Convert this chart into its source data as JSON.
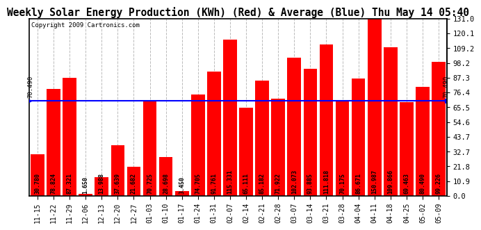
{
  "title": "Weekly Solar Energy Production (KWh) (Red) & Average (Blue) Thu May 14 05:40",
  "copyright": "Copyright 2009 Cartronics.com",
  "categories": [
    "11-15",
    "11-22",
    "11-29",
    "12-06",
    "12-13",
    "12-20",
    "12-27",
    "01-03",
    "01-10",
    "01-17",
    "01-24",
    "01-31",
    "02-07",
    "02-14",
    "02-21",
    "02-28",
    "03-07",
    "03-14",
    "03-21",
    "03-28",
    "04-04",
    "04-11",
    "04-18",
    "04-25",
    "05-02",
    "05-09"
  ],
  "values": [
    30.78,
    78.824,
    87.321,
    1.65,
    13.988,
    37.639,
    21.682,
    70.725,
    28.698,
    3.45,
    74.705,
    91.761,
    115.331,
    65.111,
    85.182,
    71.922,
    102.073,
    93.885,
    111.818,
    70.175,
    86.671,
    150.987,
    109.866,
    69.463,
    80.49,
    99.226
  ],
  "average": 70.49,
  "bar_color": "#FF0000",
  "avg_line_color": "#0000FF",
  "background_color": "#FFFFFF",
  "grid_color": "#BBBBBB",
  "yticks_right": [
    0.0,
    10.9,
    21.8,
    32.7,
    43.7,
    54.6,
    65.5,
    76.4,
    87.3,
    98.2,
    109.2,
    120.1,
    131.0
  ],
  "ymax": 131.0,
  "ylabel_fontsize": 7.5,
  "title_fontsize": 10.5,
  "copyright_fontsize": 6.5,
  "bar_label_fontsize": 6,
  "avg_label": "70.490",
  "avg_label_fontsize": 6.5,
  "xtick_fontsize": 7
}
